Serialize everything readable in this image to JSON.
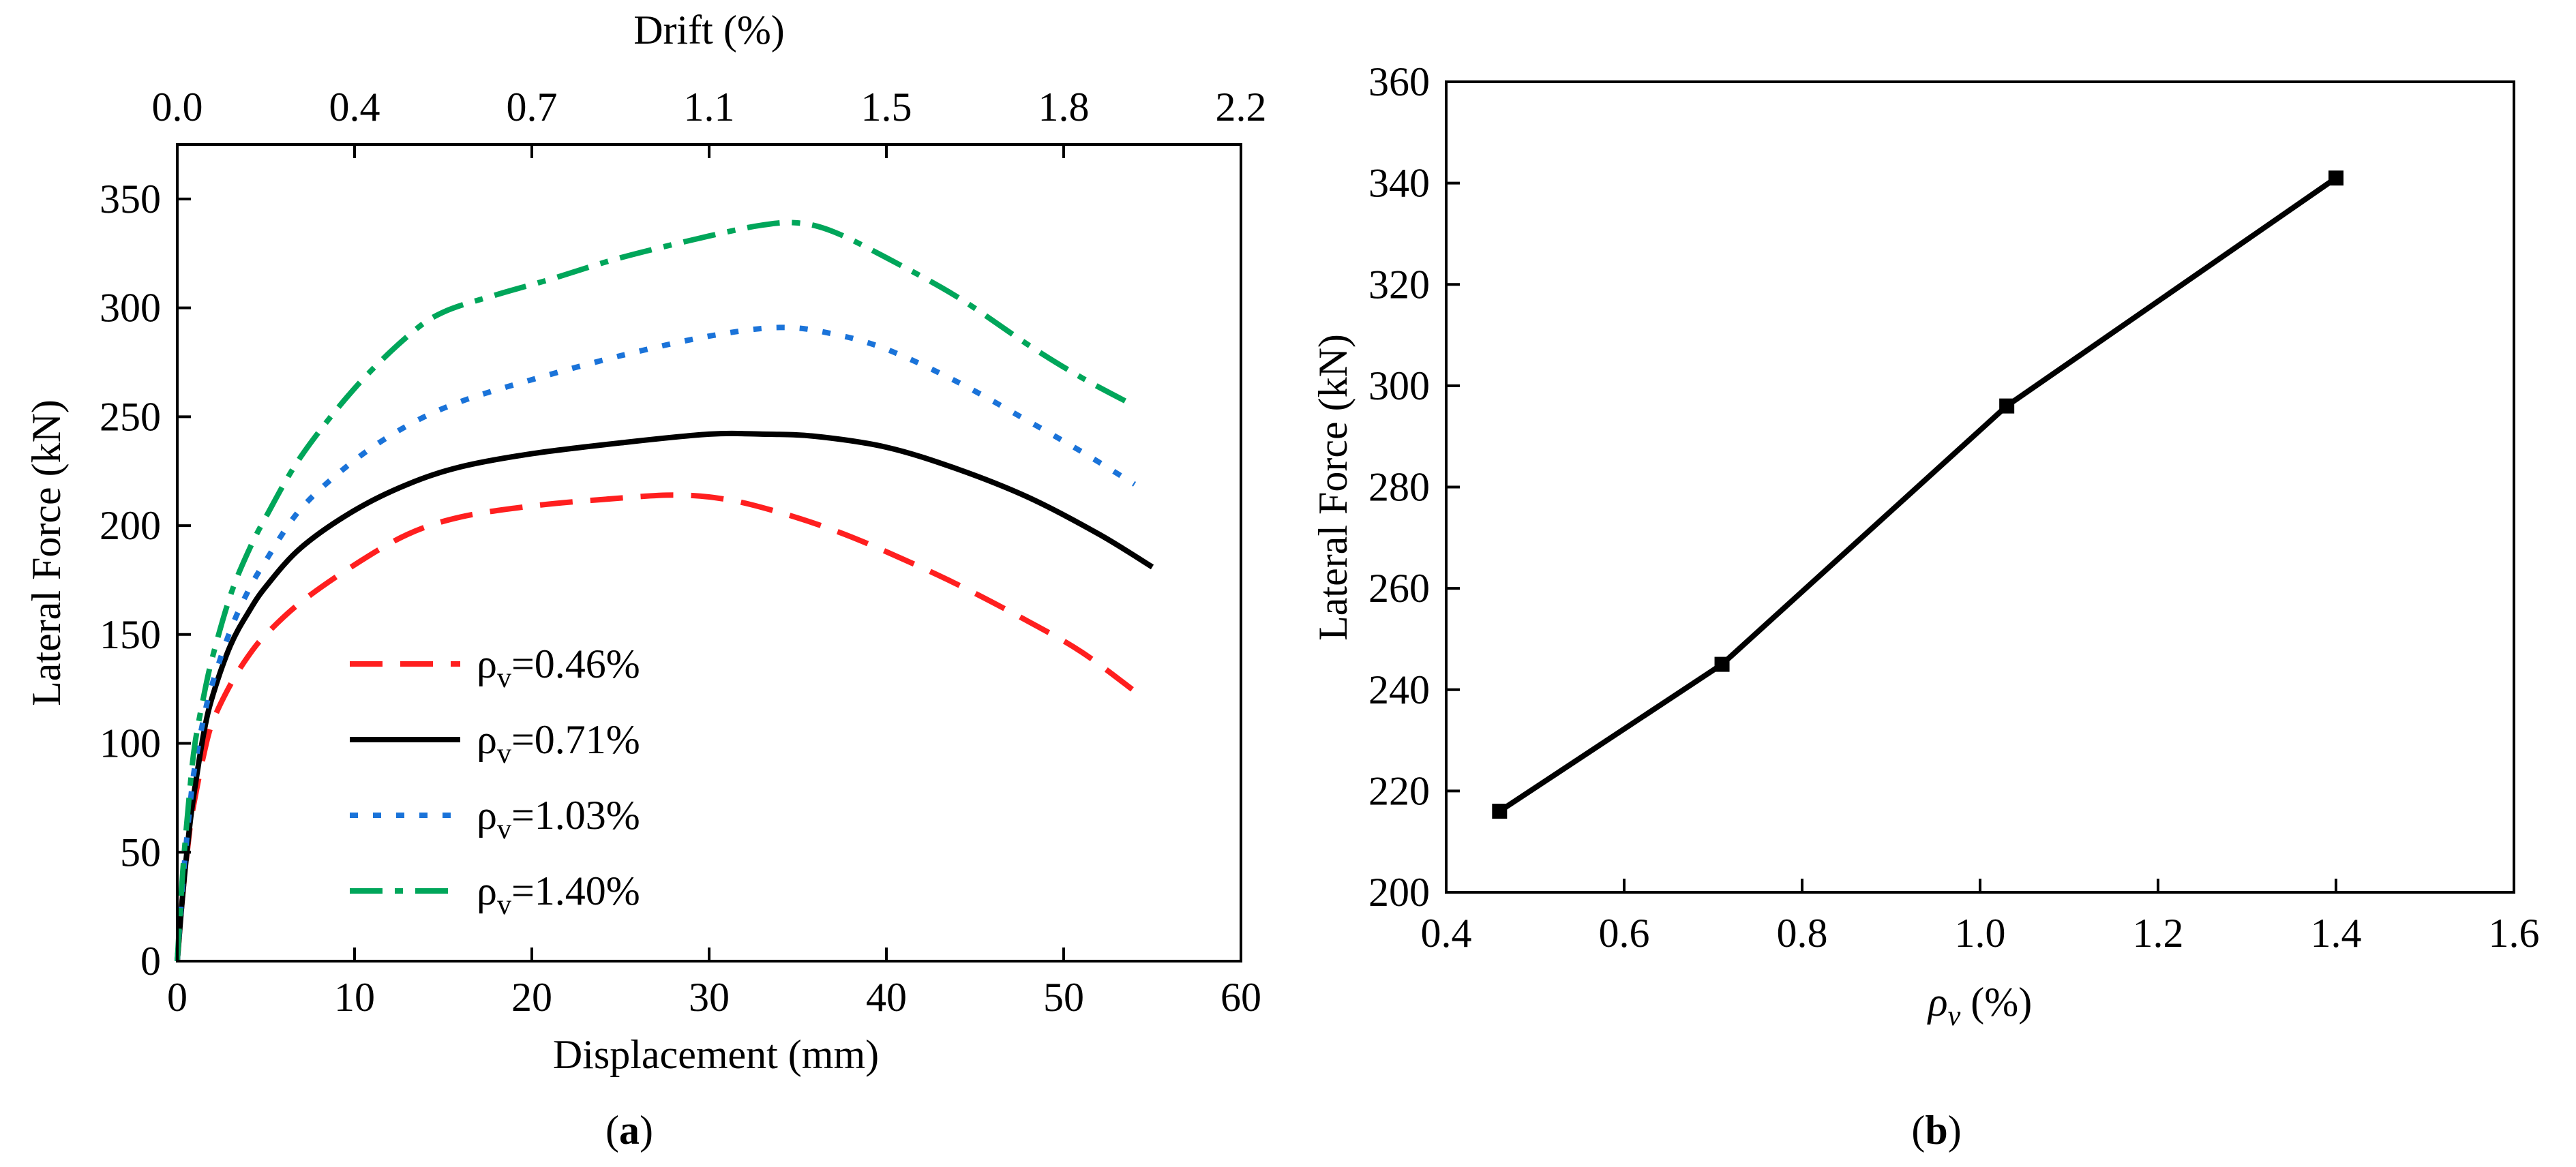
{
  "chart_data": [
    {
      "type": "line",
      "caption": "(a)",
      "xlabel": "Displacement (mm)",
      "ylabel": "Lateral Force (kN)",
      "x2label": "Drift (%)",
      "xlim": [
        0,
        60
      ],
      "ylim": [
        0,
        375
      ],
      "xticks": [
        0,
        10,
        20,
        30,
        40,
        50,
        60
      ],
      "xtick_labels": [
        "0",
        "10",
        "20",
        "30",
        "40",
        "50",
        "60"
      ],
      "x2tick_labels": [
        "0.0",
        "0.4",
        "0.7",
        "1.1",
        "1.5",
        "1.8",
        "2.2"
      ],
      "yticks": [
        0,
        50,
        100,
        150,
        200,
        250,
        300,
        350
      ],
      "ytick_labels": [
        "0",
        "50",
        "100",
        "150",
        "200",
        "250",
        "300",
        "350"
      ],
      "legend_position": "center-left",
      "series": [
        {
          "name": "ρv=0.46%",
          "color": "#ff1f1f",
          "line_style": "dashed",
          "x": [
            0,
            0.3,
            0.7,
            1,
            1.5,
            2,
            3,
            4,
            5,
            7,
            10,
            13,
            16,
            20,
            24,
            28,
            31,
            34,
            37,
            40,
            44,
            48,
            51,
            54
          ],
          "y": [
            0,
            30,
            60,
            75,
            95,
            110,
            127,
            140,
            150,
            165,
            182,
            196,
            204,
            209,
            212,
            214,
            212,
            206,
            198,
            188,
            173,
            156,
            142,
            124
          ]
        },
        {
          "name": "ρv=0.71%",
          "color": "#000000",
          "line_style": "solid",
          "x": [
            0,
            0.3,
            0.7,
            1,
            1.5,
            2,
            3,
            4,
            5,
            7,
            10,
            13,
            16,
            20,
            25,
            30,
            33,
            36,
            40,
            44,
            48,
            52,
            55
          ],
          "y": [
            0,
            30,
            62,
            80,
            105,
            122,
            145,
            160,
            172,
            190,
            207,
            219,
            227,
            233,
            238,
            242,
            242,
            241,
            236,
            226,
            213,
            196,
            181
          ]
        },
        {
          "name": "ρv=1.03%",
          "color": "#1a73d9",
          "line_style": "dotted",
          "x": [
            0,
            0.3,
            0.7,
            1,
            1.5,
            2,
            3,
            4,
            5,
            7,
            10,
            13,
            16,
            20,
            25,
            30,
            34,
            37,
            40,
            44,
            48,
            51,
            54
          ],
          "y": [
            0,
            35,
            70,
            90,
            112,
            128,
            152,
            170,
            184,
            208,
            230,
            246,
            257,
            267,
            278,
            287,
            291,
            288,
            281,
            266,
            248,
            234,
            219
          ]
        },
        {
          "name": "ρv=1.40%",
          "color": "#00a65a",
          "line_style": "dash-dot",
          "x": [
            0,
            0.3,
            0.7,
            1,
            1.5,
            2,
            3,
            4,
            5,
            7,
            10,
            13,
            15,
            18,
            21,
            25,
            30,
            33,
            35,
            37,
            40,
            44,
            48,
            51,
            54
          ],
          "y": [
            0,
            40,
            78,
            100,
            122,
            140,
            168,
            188,
            204,
            232,
            263,
            287,
            298,
            306,
            313,
            323,
            333,
            338,
            339,
            335,
            323,
            305,
            283,
            268,
            255
          ]
        }
      ]
    },
    {
      "type": "line",
      "caption": "(b)",
      "xlabel": "ρv (%)",
      "ylabel": "Lateral Force (kN)",
      "xlim": [
        0.4,
        1.6
      ],
      "ylim": [
        200,
        360
      ],
      "xticks": [
        0.4,
        0.6,
        0.8,
        1.0,
        1.2,
        1.4,
        1.6
      ],
      "xtick_labels": [
        "0.4",
        "0.6",
        "0.8",
        "1.0",
        "1.2",
        "1.4",
        "1.6"
      ],
      "yticks": [
        200,
        220,
        240,
        260,
        280,
        300,
        320,
        340,
        360
      ],
      "ytick_labels": [
        "200",
        "220",
        "240",
        "260",
        "280",
        "300",
        "320",
        "340",
        "360"
      ],
      "series": [
        {
          "color": "#000000",
          "line_style": "solid",
          "marker": "square",
          "x": [
            0.46,
            0.71,
            1.03,
            1.4
          ],
          "y": [
            216,
            245,
            296,
            341
          ]
        }
      ]
    }
  ]
}
